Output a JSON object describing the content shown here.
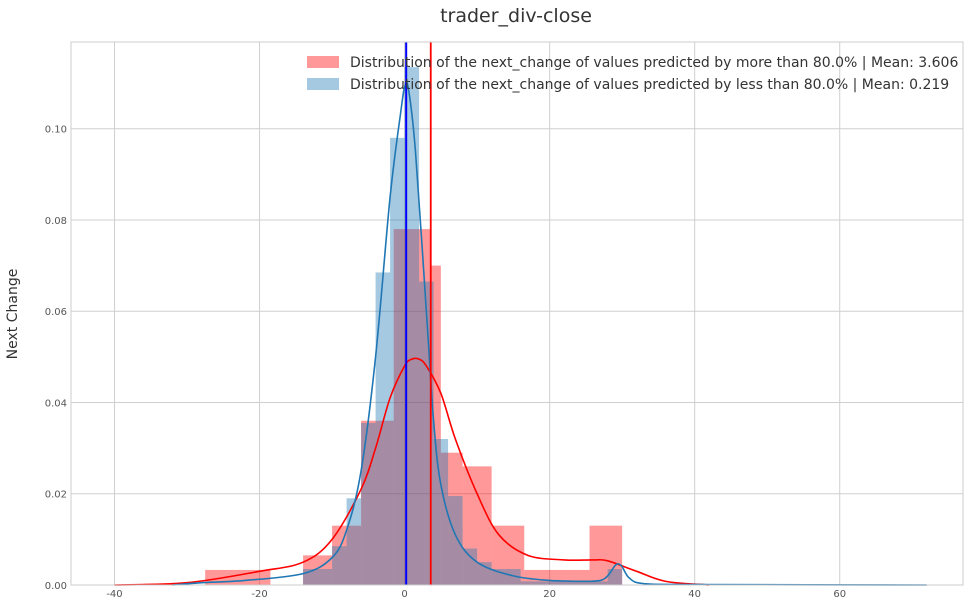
{
  "chart_data": {
    "type": "bar",
    "title": "trader_div-close",
    "xlabel": "",
    "ylabel": "Next Change",
    "xlim": [
      -46,
      77
    ],
    "ylim": [
      0,
      0.119
    ],
    "grid": true,
    "legend_position": "top-right",
    "x_ticks": [
      -40,
      -20,
      0,
      20,
      40,
      60
    ],
    "x_tick_labels": [
      "-40",
      "-20",
      "0",
      "20",
      "40",
      "60"
    ],
    "y_ticks": [
      0.0,
      0.02,
      0.04,
      0.06,
      0.08,
      0.1
    ],
    "y_tick_labels": [
      "0.00",
      "0.02",
      "0.04",
      "0.06",
      "0.08",
      "0.10"
    ],
    "series": [
      {
        "name": "Distribution of the next_change of values predicted by more than 80.0% | Mean: 3.606",
        "color": "#ff0000",
        "mean": 3.606,
        "bins": [
          {
            "x0": -27.5,
            "x1": -18.5,
            "density": 0.0033
          },
          {
            "x0": -14,
            "x1": -10,
            "density": 0.0065
          },
          {
            "x0": -10,
            "x1": -6,
            "density": 0.013
          },
          {
            "x0": -6,
            "x1": -1.5,
            "density": 0.036
          },
          {
            "x0": -1.5,
            "x1": 3.5,
            "density": 0.078
          },
          {
            "x0": 3.5,
            "x1": 5,
            "density": 0.07
          },
          {
            "x0": 5,
            "x1": 8,
            "density": 0.029
          },
          {
            "x0": 8,
            "x1": 12,
            "density": 0.026
          },
          {
            "x0": 12,
            "x1": 16.5,
            "density": 0.013
          },
          {
            "x0": 16.5,
            "x1": 25.5,
            "density": 0.0033
          },
          {
            "x0": 25.5,
            "x1": 30,
            "density": 0.013
          }
        ],
        "kde": [
          [
            -40,
            0
          ],
          [
            -30,
            0.0005
          ],
          [
            -20,
            0.003
          ],
          [
            -14,
            0.005
          ],
          [
            -10,
            0.01
          ],
          [
            -6,
            0.021
          ],
          [
            -4,
            0.03
          ],
          [
            -2,
            0.041
          ],
          [
            0,
            0.048
          ],
          [
            1,
            0.0495
          ],
          [
            2,
            0.0495
          ],
          [
            3,
            0.048
          ],
          [
            5,
            0.042
          ],
          [
            7,
            0.032
          ],
          [
            10,
            0.02
          ],
          [
            13,
            0.011
          ],
          [
            17,
            0.0065
          ],
          [
            22,
            0.0055
          ],
          [
            26,
            0.0055
          ],
          [
            28,
            0.0053
          ],
          [
            32,
            0.003
          ],
          [
            36,
            0.0008
          ],
          [
            42,
            0
          ]
        ]
      },
      {
        "name": "Distribution of the next_change of values predicted by less than 80.0% | Mean: 0.219",
        "color": "#1f77b4",
        "mean": 0.219,
        "bins": [
          {
            "x0": -14,
            "x1": -10,
            "density": 0.0035
          },
          {
            "x0": -10,
            "x1": -8,
            "density": 0.0085
          },
          {
            "x0": -8,
            "x1": -6,
            "density": 0.019
          },
          {
            "x0": -6,
            "x1": -4,
            "density": 0.0355
          },
          {
            "x0": -4,
            "x1": -2,
            "density": 0.0685
          },
          {
            "x0": -2,
            "x1": 0,
            "density": 0.098
          },
          {
            "x0": 0,
            "x1": 2,
            "density": 0.1135
          },
          {
            "x0": 2,
            "x1": 4,
            "density": 0.0665
          },
          {
            "x0": 4,
            "x1": 6,
            "density": 0.032
          },
          {
            "x0": 6,
            "x1": 8,
            "density": 0.0195
          },
          {
            "x0": 8,
            "x1": 10,
            "density": 0.008
          },
          {
            "x0": 10,
            "x1": 12,
            "density": 0.005
          },
          {
            "x0": 12,
            "x1": 16,
            "density": 0.0035
          },
          {
            "x0": 16,
            "x1": 28,
            "density": 0.0008
          },
          {
            "x0": 28,
            "x1": 30,
            "density": 0.0035
          }
        ],
        "kde": [
          [
            -32,
            0
          ],
          [
            -28,
            0.0005
          ],
          [
            -22,
            0.001
          ],
          [
            -14,
            0.0025
          ],
          [
            -10,
            0.006
          ],
          [
            -8,
            0.012
          ],
          [
            -6,
            0.025
          ],
          [
            -4,
            0.05
          ],
          [
            -2,
            0.085
          ],
          [
            -0.5,
            0.104
          ],
          [
            0,
            0.109
          ],
          [
            0.5,
            0.109
          ],
          [
            1.5,
            0.095
          ],
          [
            3,
            0.06
          ],
          [
            4,
            0.036
          ],
          [
            5,
            0.022
          ],
          [
            7,
            0.011
          ],
          [
            10,
            0.005
          ],
          [
            15,
            0.002
          ],
          [
            20,
            0.001
          ],
          [
            25,
            0.0008
          ],
          [
            27,
            0.001
          ],
          [
            28,
            0.002
          ],
          [
            29,
            0.0042
          ],
          [
            29.5,
            0.0046
          ],
          [
            30,
            0.004
          ],
          [
            31,
            0.0015
          ],
          [
            33,
            0.0003
          ],
          [
            40,
            0.0001
          ],
          [
            72,
            0
          ]
        ]
      }
    ]
  }
}
